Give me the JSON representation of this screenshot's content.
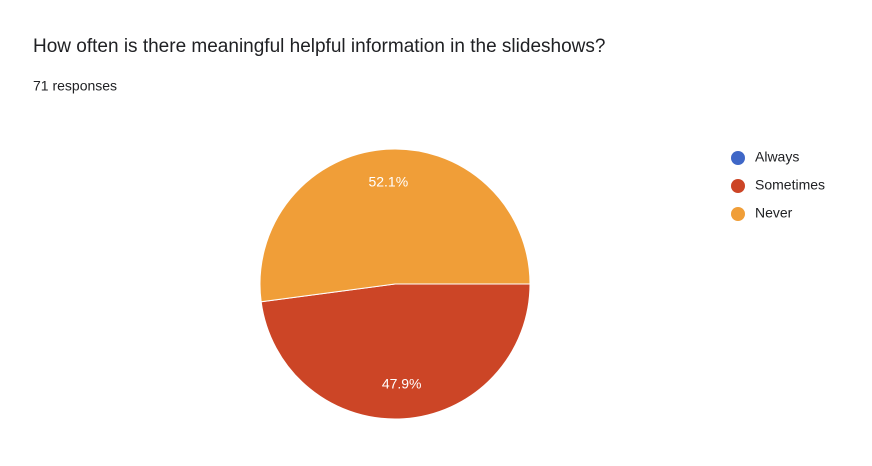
{
  "chart_data": {
    "type": "pie",
    "title": "How often is there meaningful helpful information in the slideshows?",
    "subtitle": "71 responses",
    "categories": [
      "Always",
      "Sometimes",
      "Never"
    ],
    "values": [
      0,
      47.9,
      52.1
    ],
    "value_labels": [
      null,
      "47.9%",
      "52.1%"
    ],
    "colors": [
      "#3f67c7",
      "#cc4526",
      "#f09e38"
    ],
    "legend": "right"
  }
}
